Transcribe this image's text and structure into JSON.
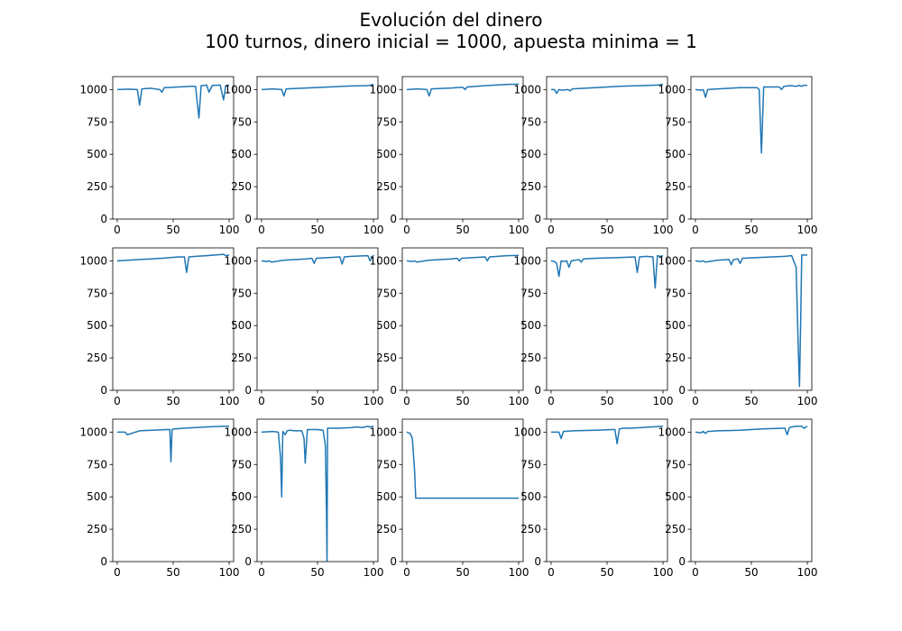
{
  "title": {
    "line1": "Evolución del dinero",
    "line2": "100 turnos, dinero inicial = 1000, apuesta minima = 1"
  },
  "colors": {
    "line": "#1f77b4",
    "axes": "#000000"
  },
  "chart_data": {
    "type": "line",
    "layout": "grid 3x5",
    "xlim": [
      -4,
      104
    ],
    "ylim": [
      0,
      1100
    ],
    "xticks": [
      0,
      50,
      100
    ],
    "yticks": [
      0,
      250,
      500,
      750,
      1000
    ],
    "grid": false,
    "legend": "none",
    "subplots": [
      {
        "x": [
          0,
          10,
          18,
          20,
          22,
          30,
          38,
          40,
          42,
          55,
          65,
          70,
          73,
          75,
          78,
          80,
          82,
          85,
          92,
          95,
          97,
          100
        ],
        "y": [
          1000,
          1003,
          1000,
          880,
          1005,
          1010,
          1000,
          980,
          1015,
          1020,
          1025,
          1025,
          780,
          1030,
          1032,
          1035,
          980,
          1032,
          1035,
          920,
          1030,
          1035
        ]
      },
      {
        "x": [
          0,
          10,
          18,
          20,
          22,
          40,
          60,
          80,
          95,
          100
        ],
        "y": [
          1000,
          1005,
          1000,
          950,
          1005,
          1012,
          1020,
          1028,
          1030,
          1040
        ]
      },
      {
        "x": [
          0,
          10,
          18,
          20,
          22,
          40,
          50,
          52,
          54,
          70,
          90,
          100
        ],
        "y": [
          1000,
          1005,
          1000,
          950,
          1005,
          1012,
          1018,
          1000,
          1020,
          1030,
          1040,
          1042
        ]
      },
      {
        "x": [
          0,
          3,
          5,
          7,
          10,
          15,
          17,
          19,
          30,
          50,
          60,
          80,
          95,
          100
        ],
        "y": [
          1000,
          1000,
          970,
          1000,
          995,
          1000,
          990,
          1005,
          1010,
          1020,
          1025,
          1030,
          1035,
          1040
        ]
      },
      {
        "x": [
          0,
          5,
          7,
          9,
          11,
          20,
          40,
          55,
          57,
          59,
          61,
          65,
          75,
          77,
          79,
          85,
          90,
          92,
          95,
          97,
          100
        ],
        "y": [
          1000,
          995,
          1000,
          940,
          1000,
          1005,
          1015,
          1015,
          1000,
          510,
          1020,
          1020,
          1020,
          1000,
          1025,
          1030,
          1025,
          1032,
          1025,
          1035,
          1030
        ]
      },
      {
        "x": [
          0,
          10,
          20,
          30,
          40,
          55,
          60,
          62,
          64,
          70,
          80,
          95,
          97,
          100
        ],
        "y": [
          1000,
          1005,
          1010,
          1015,
          1020,
          1030,
          1030,
          910,
          1030,
          1035,
          1040,
          1050,
          1040,
          1045
        ]
      },
      {
        "x": [
          0,
          5,
          7,
          9,
          20,
          40,
          45,
          47,
          49,
          60,
          70,
          72,
          74,
          80,
          95,
          97,
          100
        ],
        "y": [
          1000,
          995,
          1000,
          990,
          1005,
          1015,
          1020,
          980,
          1020,
          1025,
          1030,
          975,
          1030,
          1035,
          1040,
          1000,
          1045
        ]
      },
      {
        "x": [
          0,
          5,
          7,
          9,
          20,
          40,
          45,
          47,
          49,
          60,
          70,
          72,
          74,
          90,
          100
        ],
        "y": [
          1000,
          995,
          1000,
          990,
          1005,
          1015,
          1020,
          1000,
          1020,
          1025,
          1030,
          1000,
          1030,
          1040,
          1042
        ]
      },
      {
        "x": [
          0,
          3,
          5,
          7,
          9,
          11,
          14,
          16,
          18,
          25,
          27,
          29,
          40,
          60,
          75,
          77,
          79,
          85,
          91,
          93,
          95,
          97,
          100
        ],
        "y": [
          1000,
          995,
          980,
          880,
          1000,
          995,
          1000,
          950,
          1000,
          1010,
          990,
          1015,
          1020,
          1025,
          1030,
          910,
          1030,
          1035,
          1030,
          790,
          1040,
          1035,
          1038
        ]
      },
      {
        "x": [
          0,
          5,
          7,
          9,
          20,
          30,
          32,
          34,
          38,
          40,
          42,
          55,
          80,
          86,
          90,
          92,
          93,
          94,
          95,
          96,
          97,
          100
        ],
        "y": [
          1000,
          995,
          1000,
          990,
          1005,
          1010,
          970,
          1010,
          1015,
          980,
          1020,
          1025,
          1035,
          1040,
          950,
          300,
          30,
          500,
          1045,
          1045,
          1045,
          1045
        ]
      },
      {
        "x": [
          0,
          5,
          7,
          9,
          20,
          45,
          47,
          48,
          49,
          51,
          60,
          80,
          95,
          100
        ],
        "y": [
          1000,
          1000,
          1000,
          980,
          1010,
          1020,
          1020,
          770,
          1020,
          1025,
          1030,
          1040,
          1045,
          1045
        ]
      },
      {
        "x": [
          0,
          10,
          15,
          17,
          18,
          19,
          21,
          23,
          25,
          30,
          36,
          38,
          39,
          41,
          50,
          55,
          57,
          58,
          58.5,
          59,
          70,
          80,
          85,
          90,
          95,
          97,
          100
        ],
        "y": [
          1000,
          1005,
          1000,
          800,
          500,
          1005,
          980,
          1010,
          1015,
          1010,
          1010,
          950,
          760,
          1020,
          1020,
          1015,
          900,
          400,
          0,
          1030,
          1030,
          1035,
          1040,
          1035,
          1045,
          1040,
          1045
        ]
      },
      {
        "x": [
          0,
          3,
          5,
          7,
          8,
          9,
          20,
          40,
          60,
          80,
          100
        ],
        "y": [
          1000,
          990,
          950,
          700,
          490,
          490,
          490,
          490,
          490,
          490,
          490
        ]
      },
      {
        "x": [
          0,
          5,
          7,
          9,
          11,
          20,
          40,
          55,
          57,
          59,
          61,
          65,
          70,
          80,
          100
        ],
        "y": [
          1000,
          1000,
          1000,
          950,
          1005,
          1010,
          1015,
          1020,
          1020,
          910,
          1025,
          1030,
          1030,
          1035,
          1045
        ]
      },
      {
        "x": [
          0,
          5,
          7,
          9,
          11,
          20,
          30,
          40,
          60,
          80,
          82,
          84,
          86,
          90,
          95,
          97,
          100
        ],
        "y": [
          1000,
          995,
          1005,
          990,
          1005,
          1010,
          1012,
          1015,
          1025,
          1030,
          980,
          1035,
          1040,
          1045,
          1045,
          1030,
          1045
        ]
      }
    ]
  }
}
